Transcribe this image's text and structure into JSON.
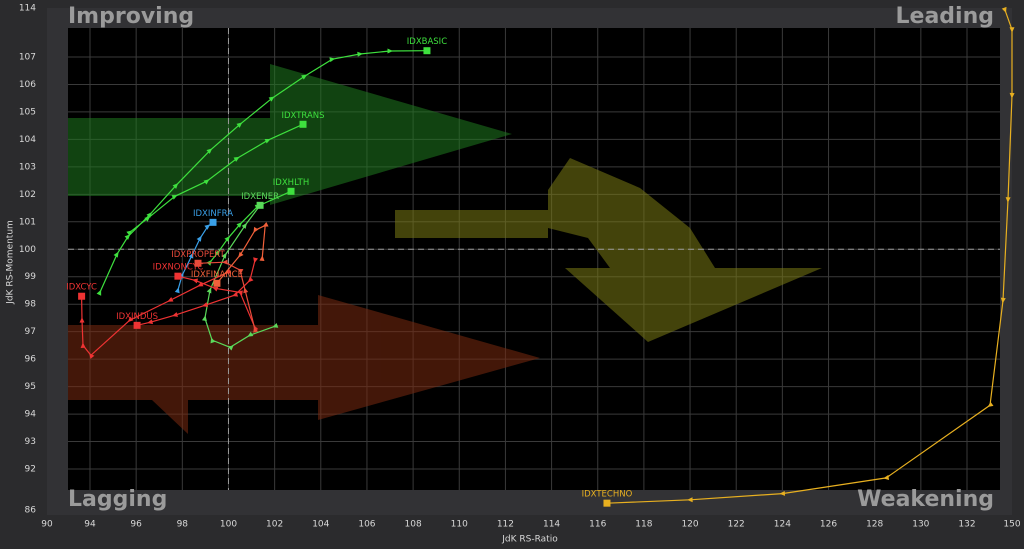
{
  "chart_data": {
    "type": "rrg",
    "xlabel": "JdK RS-Ratio",
    "ylabel": "JdK RS-Momentum",
    "quadrants": {
      "top_left": "Improving",
      "top_right": "Leading",
      "bottom_left": "Lagging",
      "bottom_right": "Weakening"
    },
    "xticks": [
      90,
      94,
      96,
      98,
      100,
      102,
      104,
      106,
      108,
      110,
      112,
      114,
      116,
      118,
      120,
      122,
      124,
      126,
      128,
      130,
      132,
      150
    ],
    "yticks": [
      86,
      92,
      93,
      94,
      95,
      96,
      97,
      98,
      99,
      100,
      101,
      102,
      103,
      104,
      105,
      106,
      107,
      114
    ],
    "xlim": [
      90,
      150
    ],
    "ylim": [
      86,
      114
    ],
    "x_reference": 100,
    "y_reference": 100,
    "grid": true,
    "series": [
      {
        "name": "IDXBASIC",
        "color": "#3ee03e",
        "x": [
          94.43,
          95.17,
          95.65,
          96.6,
          97.73,
          99.2,
          100.5,
          101.89,
          103.3,
          104.5,
          105.7,
          107.0,
          108.6
        ],
        "y": [
          98.43,
          99.82,
          100.47,
          101.27,
          102.33,
          103.6,
          104.55,
          105.5,
          106.3,
          106.92,
          107.43,
          107.86,
          107.9
        ]
      },
      {
        "name": "IDXTRANS",
        "color": "#3ee03e",
        "x": [
          95.73,
          96.51,
          97.68,
          99.07,
          100.37,
          101.71,
          103.23
        ],
        "y": [
          100.62,
          101.13,
          101.93,
          102.48,
          103.31,
          103.97,
          104.55
        ]
      },
      {
        "name": "IDXHLTH",
        "color": "#3ee03e",
        "x": [
          99.2,
          99.55,
          99.98,
          100.5,
          101.28,
          102.71
        ],
        "y": [
          99.53,
          99.89,
          100.4,
          100.91,
          101.57,
          102.11
        ]
      },
      {
        "name": "IDXENER",
        "color": "#5ad85a",
        "x": [
          102.02,
          100.93,
          100.07,
          99.29,
          98.98,
          99.2,
          99.85,
          100.72,
          101.37
        ],
        "y": [
          97.2,
          96.87,
          96.43,
          96.69,
          97.49,
          98.51,
          99.78,
          100.87,
          101.6
        ]
      },
      {
        "name": "IDXINFRA",
        "color": "#3aa0e8",
        "x": [
          97.81,
          97.99,
          98.42,
          98.77,
          99.11,
          99.33
        ],
        "y": [
          98.51,
          99.05,
          99.78,
          100.4,
          100.84,
          100.98
        ]
      },
      {
        "name": "IDXCYC",
        "color": "#ee3333",
        "x": [
          99.98,
          98.77,
          97.47,
          95.73,
          94.04,
          93.35,
          93.26,
          93.22
        ],
        "y": [
          99.16,
          98.69,
          98.14,
          97.42,
          96.14,
          96.5,
          97.42,
          98.29
        ]
      },
      {
        "name": "IDXINDUS",
        "color": "#ee3333",
        "x": [
          101.15,
          100.93,
          100.28,
          98.98,
          97.68,
          96.6,
          96.04
        ],
        "y": [
          99.6,
          98.87,
          98.33,
          97.96,
          97.6,
          97.34,
          97.23
        ]
      },
      {
        "name": "IDXNONCYC",
        "color": "#ee3333",
        "x": [
          101.15,
          100.5,
          99.42,
          98.55,
          97.81
        ],
        "y": [
          97.14,
          98.43,
          98.58,
          98.87,
          99.02
        ]
      },
      {
        "name": "IDXPROPERT",
        "color": "#e84a3a",
        "x": [
          101.15,
          100.72,
          100.5,
          99.85,
          98.68
        ],
        "y": [
          97.07,
          98.51,
          99.24,
          99.53,
          99.49
        ]
      },
      {
        "name": "IDXFINANCE",
        "color": "#f0603a",
        "x": [
          101.46,
          101.59,
          101.15,
          100.5,
          99.5
        ],
        "y": [
          99.67,
          100.87,
          100.69,
          99.78,
          98.76
        ]
      },
      {
        "name": "IDXTECHNO",
        "color": "#e8b020",
        "x": [
          147.2,
          150,
          150,
          148.4,
          146.4,
          141.2,
          128.5,
          124,
          120,
          116.4
        ],
        "y": [
          113.7,
          110.9,
          105.6,
          101.8,
          98.14,
          94.32,
          90.7,
          88.4,
          87.5,
          87.0
        ]
      }
    ]
  }
}
